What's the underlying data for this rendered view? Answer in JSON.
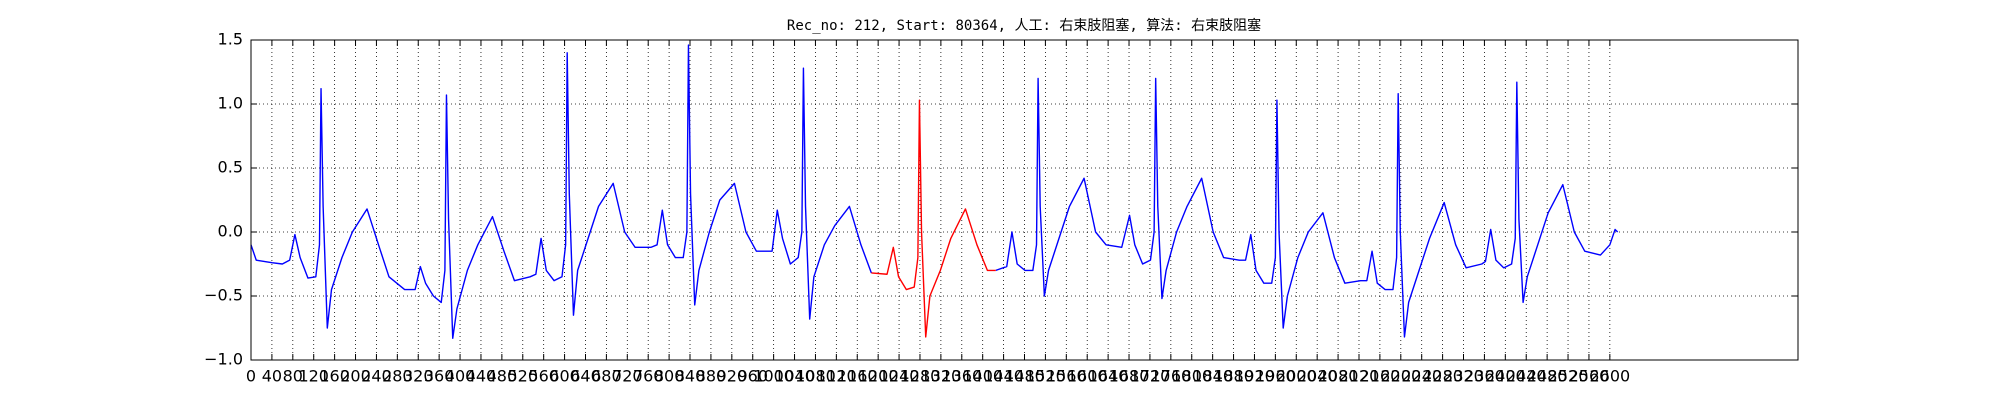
{
  "chart_data": {
    "type": "line",
    "title": "Rec_no: 212, Start: 80364, 人工: 右束肢阻塞, 算法: 右束肢阻塞",
    "xlim": [
      0,
      2960
    ],
    "ylim": [
      -1.0,
      1.5
    ],
    "grid": true,
    "xticks": [
      0,
      40,
      80,
      120,
      160,
      200,
      240,
      280,
      320,
      360,
      400,
      440,
      480,
      520,
      560,
      600,
      640,
      680,
      720,
      760,
      800,
      840,
      880,
      920,
      960,
      1000,
      1040,
      1080,
      1120,
      1160,
      1200,
      1240,
      1280,
      1320,
      1360,
      1400,
      1440,
      1480,
      1520,
      1560,
      1600,
      1640,
      1680,
      1720,
      1760,
      1800,
      1840,
      1880,
      1920,
      1960,
      2000,
      2040,
      2080,
      2120,
      2160,
      2200,
      2240,
      2280,
      2320,
      2360,
      2400,
      2440,
      2480,
      2520,
      2560,
      2600
    ],
    "yticks": [
      {
        "value": -1.0,
        "label": "−1.0"
      },
      {
        "value": -0.5,
        "label": "−0.5"
      },
      {
        "value": 0.0,
        "label": "0.0"
      },
      {
        "value": 0.5,
        "label": "0.5"
      },
      {
        "value": 1.0,
        "label": "1.0"
      },
      {
        "value": 1.5,
        "label": "1.5"
      }
    ],
    "series": [
      {
        "color": "#0000ff",
        "x": [
          0,
          10,
          40,
          60,
          74,
          84,
          94,
          109,
          124,
          131,
          134,
          138,
          146,
          154,
          174,
          194,
          222,
          244,
          264,
          294,
          314,
          324,
          334,
          349,
          364,
          371,
          374,
          378,
          386,
          394,
          414,
          434,
          462,
          484,
          504,
          534,
          545,
          555,
          565,
          580,
          595,
          602,
          605,
          609,
          617,
          625,
          645,
          665,
          693,
          715,
          735,
          765,
          777,
          787,
          797,
          812,
          827,
          834,
          837,
          841,
          849,
          857,
          877,
          897,
          925,
          947,
          967,
          997,
          1007,
          1017,
          1032,
          1047,
          1054,
          1057,
          1061,
          1069,
          1077,
          1097,
          1117,
          1145,
          1167,
          1187,
          1306,
          1425,
          1446,
          1456,
          1466,
          1481,
          1496,
          1503,
          1506,
          1510,
          1518,
          1526,
          1546,
          1566,
          1594,
          1616,
          1636,
          1666,
          1681,
          1691,
          1706,
          1721,
          1728,
          1731,
          1735,
          1743,
          1751,
          1771,
          1791,
          1819,
          1841,
          1861,
          1891,
          1903,
          1913,
          1923,
          1938,
          1953,
          1960,
          1963,
          1967,
          1975,
          1983,
          2003,
          2023,
          2051,
          2073,
          2093,
          2123,
          2135,
          2145,
          2155,
          2170,
          2185,
          2192,
          2195,
          2199,
          2207,
          2215,
          2235,
          2255,
          2283,
          2305,
          2325,
          2355,
          2362,
          2372,
          2382,
          2397,
          2412,
          2419,
          2422,
          2426,
          2434,
          2442,
          2462,
          2482,
          2510,
          2532,
          2552,
          2582,
          2600,
          2610,
          2615
        ],
        "values": [
          -0.1,
          -0.22,
          -0.24,
          -0.25,
          -0.22,
          -0.02,
          -0.2,
          -0.36,
          -0.35,
          -0.1,
          1.12,
          0.2,
          -0.75,
          -0.45,
          -0.2,
          0.0,
          0.18,
          -0.1,
          -0.35,
          -0.45,
          -0.45,
          -0.27,
          -0.4,
          -0.5,
          -0.55,
          -0.3,
          1.07,
          0.1,
          -0.83,
          -0.6,
          -0.3,
          -0.1,
          0.12,
          -0.15,
          -0.38,
          -0.35,
          -0.33,
          -0.05,
          -0.3,
          -0.38,
          -0.35,
          -0.1,
          1.4,
          0.3,
          -0.65,
          -0.3,
          -0.05,
          0.2,
          0.38,
          0.0,
          -0.12,
          -0.12,
          -0.1,
          0.17,
          -0.1,
          -0.2,
          -0.2,
          0.0,
          1.46,
          0.3,
          -0.57,
          -0.3,
          0.0,
          0.25,
          0.38,
          0.0,
          -0.15,
          -0.15,
          0.17,
          -0.05,
          -0.25,
          -0.2,
          0.0,
          1.28,
          0.2,
          -0.68,
          -0.35,
          -0.1,
          0.05,
          0.2,
          -0.1,
          -0.32,
          null,
          -0.3,
          -0.27,
          0.0,
          -0.25,
          -0.3,
          -0.3,
          -0.1,
          1.2,
          0.2,
          -0.5,
          -0.3,
          -0.05,
          0.2,
          0.42,
          0.0,
          -0.1,
          -0.12,
          0.13,
          -0.1,
          -0.25,
          -0.22,
          0.0,
          1.2,
          0.2,
          -0.52,
          -0.3,
          0.0,
          0.2,
          0.42,
          0.0,
          -0.2,
          -0.22,
          -0.22,
          -0.02,
          -0.3,
          -0.4,
          -0.4,
          -0.2,
          1.03,
          0.0,
          -0.75,
          -0.5,
          -0.2,
          0.0,
          0.15,
          -0.2,
          -0.4,
          -0.38,
          -0.38,
          -0.15,
          -0.4,
          -0.45,
          -0.45,
          -0.2,
          1.08,
          0.0,
          -0.82,
          -0.55,
          -0.3,
          -0.05,
          0.23,
          -0.1,
          -0.28,
          -0.25,
          -0.23,
          0.02,
          -0.22,
          -0.28,
          -0.25,
          -0.05,
          1.17,
          0.1,
          -0.55,
          -0.35,
          -0.1,
          0.15,
          0.37,
          0.0,
          -0.15,
          -0.18,
          -0.1,
          0.02,
          0.0
        ]
      },
      {
        "color": "#ff0000",
        "x": [
          1187,
          1217,
          1229,
          1239,
          1254,
          1269,
          1276,
          1279,
          1283,
          1291,
          1299,
          1319,
          1339,
          1367,
          1389,
          1409,
          1425
        ],
        "values": [
          -0.32,
          -0.33,
          -0.12,
          -0.35,
          -0.45,
          -0.43,
          -0.2,
          1.03,
          0.0,
          -0.82,
          -0.5,
          -0.3,
          -0.05,
          0.18,
          -0.1,
          -0.3,
          -0.3
        ]
      }
    ]
  }
}
